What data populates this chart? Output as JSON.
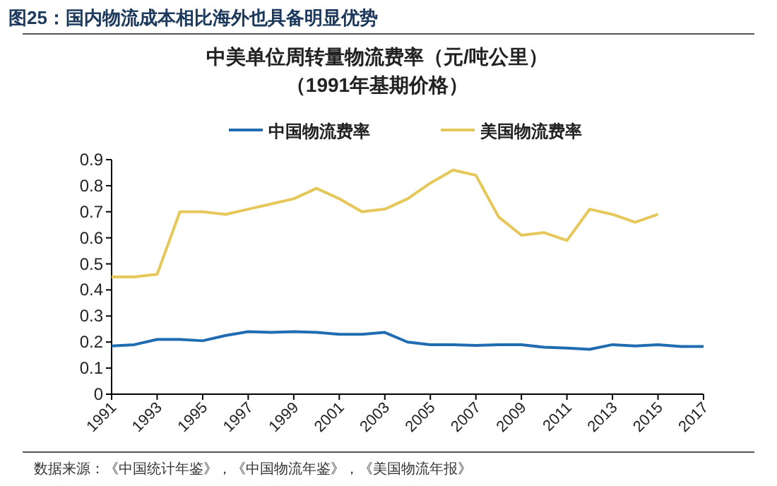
{
  "chart_data": {
    "type": "line",
    "title": "图25：国内物流成本相比海外也具备明显优势",
    "subtitle": "中美单位周转量物流费率（元/吨公里）（1991年基期价格）",
    "x": [
      1991,
      1992,
      1993,
      1994,
      1995,
      1996,
      1997,
      1998,
      1999,
      2000,
      2001,
      2002,
      2003,
      2004,
      2005,
      2006,
      2007,
      2008,
      2009,
      2010,
      2011,
      2012,
      2013,
      2014,
      2015,
      2016,
      2017
    ],
    "series": [
      {
        "name": "中国物流费率",
        "color": "#1f6cb0",
        "values": [
          0.185,
          0.19,
          0.21,
          0.21,
          0.205,
          0.225,
          0.24,
          0.237,
          0.24,
          0.237,
          0.23,
          0.23,
          0.237,
          0.2,
          0.19,
          0.19,
          0.187,
          0.19,
          0.19,
          0.18,
          0.177,
          0.172,
          0.19,
          0.185,
          0.19,
          0.183,
          0.183
        ]
      },
      {
        "name": "美国物流费率",
        "color": "#e6c85a",
        "values": [
          0.45,
          0.45,
          0.46,
          0.7,
          0.7,
          0.69,
          0.71,
          0.73,
          0.75,
          0.79,
          0.75,
          0.7,
          0.71,
          0.75,
          0.81,
          0.86,
          0.84,
          0.68,
          0.61,
          0.62,
          0.59,
          0.71,
          0.69,
          0.66,
          0.69,
          null,
          null
        ]
      }
    ],
    "xlim": [
      1991,
      2017
    ],
    "xticks": [
      1991,
      1993,
      1995,
      1997,
      1999,
      2001,
      2003,
      2005,
      2007,
      2009,
      2011,
      2013,
      2015,
      2017
    ],
    "ylim": [
      0,
      0.9
    ],
    "yticks": [
      {
        "value": 0,
        "label": "0"
      },
      0.1,
      0.2,
      0.3,
      0.4,
      0.5,
      0.6,
      0.7,
      0.8,
      0.9
    ],
    "legend": "top",
    "grid": false,
    "line_style": "solid",
    "marker": "none",
    "annotations": [
      "数据来源：《中国统计年鉴》，《中国物流年鉴》，《美国物流年报》"
    ]
  }
}
